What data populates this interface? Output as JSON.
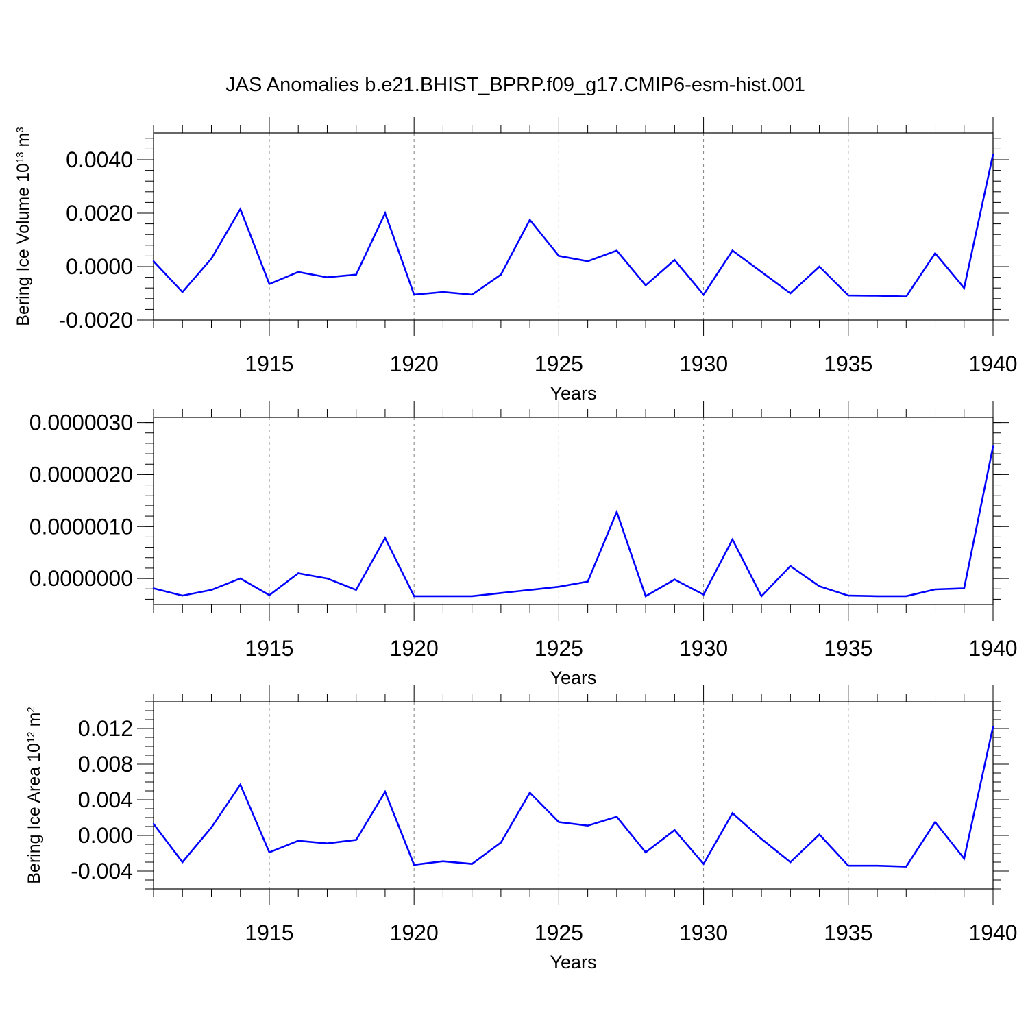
{
  "title": "JAS Anomalies b.e21.BHIST_BPRP.f09_g17.CMIP6-esm-hist.001",
  "colors": {
    "line": "#0000ff",
    "axis": "#000000",
    "grid": "#808080"
  },
  "chart_data": [
    {
      "type": "line",
      "title": "JAS Anomalies b.e21.BHIST_BPRP.f09_g17.CMIP6-esm-hist.001",
      "xlabel": "Years",
      "ylabel": "Bering Ice Volume 10",
      "ylabel_exp": "13",
      "ylabel_unit": " m",
      "ylabel_unit_exp": "3",
      "xlim": [
        1911,
        1940
      ],
      "ylim": [
        -0.002,
        0.005
      ],
      "xticks": [
        "1915",
        "1920",
        "1925",
        "1930",
        "1935",
        "1940"
      ],
      "yticks": [
        "-0.0020",
        "0.0000",
        "0.0020",
        "0.0040"
      ],
      "ytick_values": [
        -0.002,
        0.0,
        0.002,
        0.004
      ],
      "ytick_minor_step": 0.0004,
      "x": [
        1911,
        1912,
        1913,
        1914,
        1915,
        1916,
        1917,
        1918,
        1919,
        1920,
        1921,
        1922,
        1923,
        1924,
        1925,
        1926,
        1927,
        1928,
        1929,
        1930,
        1931,
        1932,
        1933,
        1934,
        1935,
        1936,
        1937,
        1938,
        1939,
        1940
      ],
      "y": [
        0.0002,
        -0.00095,
        0.0003,
        0.00215,
        -0.00065,
        -0.0002,
        -0.0004,
        -0.0003,
        0.002,
        -0.00105,
        -0.00095,
        -0.00105,
        -0.0003,
        0.00175,
        0.0004,
        0.0002,
        0.0006,
        -0.0007,
        0.00025,
        -0.00105,
        0.0006,
        -0.0002,
        -0.001,
        0.0,
        -0.00108,
        -0.00109,
        -0.00112,
        0.0005,
        -0.0008,
        0.0042
      ]
    },
    {
      "type": "line",
      "xlabel": "Years",
      "ylabel": "",
      "xlim": [
        1911,
        1940
      ],
      "ylim": [
        -5e-07,
        3.1e-06
      ],
      "xticks": [
        "1915",
        "1920",
        "1925",
        "1930",
        "1935",
        "1940"
      ],
      "yticks": [
        "0.0000000",
        "0.0000010",
        "0.0000020",
        "0.0000030"
      ],
      "ytick_values": [
        0.0,
        1e-06,
        2e-06,
        3e-06
      ],
      "ytick_minor_step": 2e-07,
      "x": [
        1911,
        1912,
        1913,
        1914,
        1915,
        1916,
        1917,
        1918,
        1919,
        1920,
        1921,
        1922,
        1923,
        1924,
        1925,
        1926,
        1927,
        1928,
        1929,
        1930,
        1931,
        1932,
        1933,
        1934,
        1935,
        1936,
        1937,
        1938,
        1939,
        1940
      ],
      "y": [
        -1.9e-07,
        -3.3e-07,
        -2.2e-07,
        0.0,
        -3.2e-07,
        1e-07,
        0.0,
        -2.2e-07,
        7.8e-07,
        -3.4e-07,
        -3.4e-07,
        -3.4e-07,
        -2.8e-07,
        -2.2e-07,
        -1.6e-07,
        -6e-08,
        1.28e-06,
        -3.4e-07,
        -2e-08,
        -3.1e-07,
        7.5e-07,
        -3.4e-07,
        2.4e-07,
        -1.5e-07,
        -3.3e-07,
        -3.4e-07,
        -3.4e-07,
        -2.1e-07,
        -1.9e-07,
        2.54e-06
      ]
    },
    {
      "type": "line",
      "xlabel": "Years",
      "ylabel": "Bering Ice Area 10",
      "ylabel_exp": "12",
      "ylabel_unit": " m",
      "ylabel_unit_exp": "2",
      "xlim": [
        1911,
        1940
      ],
      "ylim": [
        -0.006,
        0.015
      ],
      "xticks": [
        "1915",
        "1920",
        "1925",
        "1930",
        "1935",
        "1940"
      ],
      "yticks": [
        "-0.004",
        "0.000",
        "0.004",
        "0.008",
        "0.012"
      ],
      "ytick_values": [
        -0.004,
        0.0,
        0.004,
        0.008,
        0.012
      ],
      "ytick_minor_step": 0.001,
      "x": [
        1911,
        1912,
        1913,
        1914,
        1915,
        1916,
        1917,
        1918,
        1919,
        1920,
        1921,
        1922,
        1923,
        1924,
        1925,
        1926,
        1927,
        1928,
        1929,
        1930,
        1931,
        1932,
        1933,
        1934,
        1935,
        1936,
        1937,
        1938,
        1939,
        1940
      ],
      "y": [
        0.0013,
        -0.003,
        0.0009,
        0.0057,
        -0.0019,
        -0.0006,
        -0.0009,
        -0.0005,
        0.0049,
        -0.0033,
        -0.0029,
        -0.0032,
        -0.0008,
        0.0048,
        0.0015,
        0.0011,
        0.0021,
        -0.0019,
        0.0006,
        -0.0032,
        0.0025,
        -0.0004,
        -0.003,
        0.0001,
        -0.0034,
        -0.0034,
        -0.0035,
        0.0015,
        -0.0026,
        0.0122
      ]
    }
  ]
}
